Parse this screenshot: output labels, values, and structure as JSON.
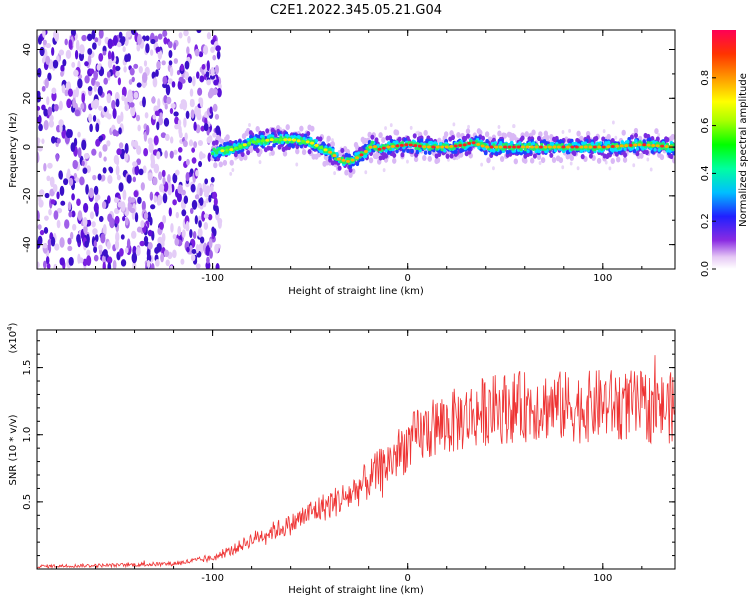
{
  "title": "C2E1.2022.345.05.21.G04",
  "chart_data": [
    {
      "type": "heatmap",
      "xlabel": "Height of straight line (km)",
      "ylabel": "Frequency (Hz)",
      "xlim": [
        -190,
        137
      ],
      "ylim": [
        -50,
        48
      ],
      "x_ticks": [
        -100,
        0,
        100
      ],
      "y_ticks": [
        -40,
        -20,
        0,
        20,
        40
      ],
      "colorbar": {
        "label": "Normalized spectral amplitude",
        "range": [
          0,
          1
        ],
        "ticks": [
          0.0,
          0.2,
          0.4,
          0.6,
          0.8
        ]
      },
      "ridge": {
        "x": [
          -190,
          -150,
          -120,
          -100,
          -90,
          -80,
          -70,
          -60,
          -50,
          -40,
          -35,
          -30,
          -25,
          -20,
          -18,
          -15,
          -10,
          0,
          10,
          20,
          30,
          33,
          40,
          60,
          80,
          100,
          120,
          137
        ],
        "y": [
          0,
          0,
          -3,
          -2,
          -1,
          2,
          3,
          3,
          2,
          -2,
          -5,
          -6,
          -4,
          -1,
          1,
          -1,
          0,
          1,
          0,
          0,
          1,
          2,
          0,
          0,
          0,
          0,
          1,
          0
        ]
      },
      "grid": false
    },
    {
      "type": "line",
      "xlabel": "Height of straight line (km)",
      "ylabel": "SNR (10 * v/v)",
      "y_scale_label": "(x10",
      "y_scale_exp": "4",
      "xlim": [
        -190,
        137
      ],
      "ylim": [
        0,
        17800
      ],
      "x_ticks": [
        -100,
        0,
        100
      ],
      "y_ticks": [
        5000,
        10000,
        15000
      ],
      "y_tick_labels": [
        "0.5",
        "1.0",
        "1.5"
      ],
      "series_color": "#ee3333",
      "envelope": {
        "x": [
          -190,
          -150,
          -120,
          -100,
          -90,
          -80,
          -70,
          -60,
          -50,
          -40,
          -30,
          -20,
          -10,
          0,
          10,
          20,
          30,
          40,
          50,
          60,
          70,
          80,
          90,
          100,
          110,
          120,
          130,
          137
        ],
        "y": [
          200,
          280,
          400,
          800,
          1400,
          2200,
          2800,
          3300,
          4200,
          4800,
          5500,
          6600,
          7900,
          9300,
          10300,
          10800,
          11300,
          11800,
          12000,
          12100,
          12200,
          12100,
          12000,
          12300,
          12200,
          12100,
          12000,
          12000
        ]
      },
      "grid": false
    }
  ]
}
